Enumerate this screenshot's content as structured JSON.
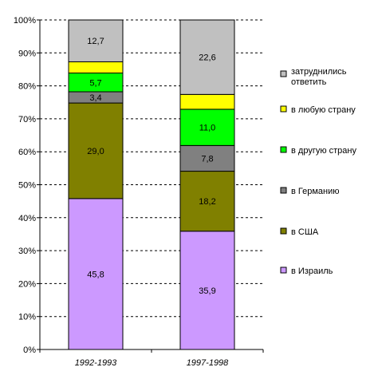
{
  "chart_data": {
    "type": "bar",
    "stacked": true,
    "percent_scale": true,
    "categories": [
      "1992-1993",
      "1997-1998"
    ],
    "ylim": [
      0,
      100
    ],
    "yticks": [
      0,
      10,
      20,
      30,
      40,
      50,
      60,
      70,
      80,
      90,
      100
    ],
    "ytick_format": "{v}%",
    "grid": true,
    "legend": "right",
    "series": [
      {
        "name": "в Израиль",
        "values": [
          45.8,
          35.9
        ],
        "labels": [
          "45,8",
          "35,9"
        ],
        "color": "#CC99FF"
      },
      {
        "name": "в США",
        "values": [
          29.0,
          18.2
        ],
        "labels": [
          "29,0",
          "18,2"
        ],
        "color": "#808000"
      },
      {
        "name": "в Германию",
        "values": [
          3.4,
          7.8
        ],
        "labels": [
          "3,4",
          "7,8"
        ],
        "color": "#808080"
      },
      {
        "name": "в другую страну",
        "values": [
          5.7,
          11.0
        ],
        "labels": [
          "5,7",
          "11,0"
        ],
        "color": "#00FF00"
      },
      {
        "name": "в любую страну",
        "values": [
          3.4,
          4.5
        ],
        "labels": [
          "",
          ""
        ],
        "color": "#FFFF00"
      },
      {
        "name": "затруднились ответить",
        "values": [
          12.7,
          22.6
        ],
        "labels": [
          "12,7",
          "22,6"
        ],
        "color": "#C0C0C0"
      }
    ]
  }
}
